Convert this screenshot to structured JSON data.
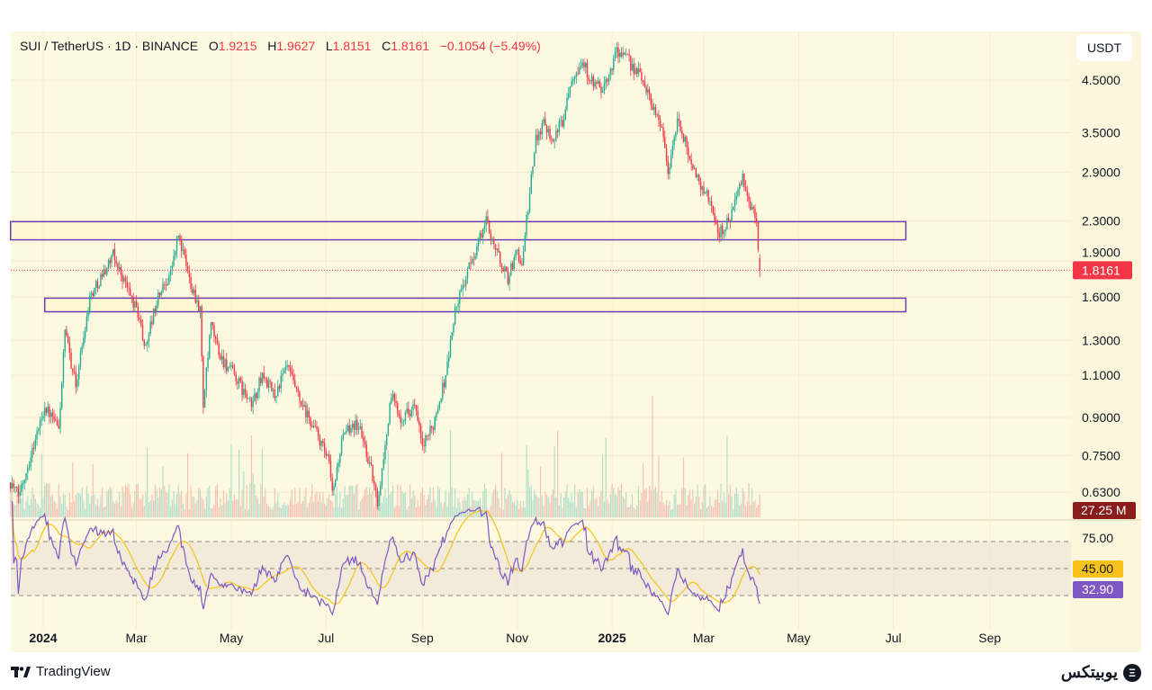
{
  "legend": {
    "symbol": "SUI / TetherUS · 1D · BINANCE",
    "open_label": "O",
    "open": "1.9215",
    "high_label": "H",
    "high": "1.9627",
    "low_label": "L",
    "low": "1.8151",
    "close_label": "C",
    "close": "1.8161",
    "change": "−0.1054 (−5.49%)"
  },
  "currency_button": "USDT",
  "footer": {
    "tradingview": "TradingView",
    "brand": "یوبیتکس"
  },
  "colors": {
    "up": "#22ab94",
    "down": "#f23645",
    "background": "#fdf9e1",
    "zone": "#6a3fb5",
    "rsi": "#7e57c2",
    "rsi_ma": "#f7c21a",
    "volume_badge": "#8b1c1c"
  },
  "chart_data": {
    "type": "candlestick",
    "title": "SUI / TetherUS · 1D · BINANCE",
    "x_unit": "days since 2024-01-01",
    "x_range": [
      -21,
      640
    ],
    "price_scale": "log",
    "ylim": [
      0.6,
      5.3
    ],
    "price_ticks": [
      "4.5000",
      "3.5000",
      "2.9000",
      "2.3000",
      "1.9000",
      "1.6000",
      "1.3000",
      "1.1000",
      "0.9000",
      "0.7500",
      "0.6300"
    ],
    "time_ticks": [
      {
        "label": "2024",
        "day": 0,
        "bold": true
      },
      {
        "label": "Mar",
        "day": 60
      },
      {
        "label": "May",
        "day": 121
      },
      {
        "label": "Jul",
        "day": 182
      },
      {
        "label": "Sep",
        "day": 244
      },
      {
        "label": "Nov",
        "day": 305
      },
      {
        "label": "2025",
        "day": 366,
        "bold": true
      },
      {
        "label": "Mar",
        "day": 425
      },
      {
        "label": "May",
        "day": 486
      },
      {
        "label": "Jul",
        "day": 547
      },
      {
        "label": "Sep",
        "day": 609
      }
    ],
    "price_path": [
      [
        -21,
        0.66
      ],
      [
        -16,
        0.62
      ],
      [
        -8,
        0.75
      ],
      [
        1,
        0.95
      ],
      [
        10,
        0.85
      ],
      [
        14,
        1.35
      ],
      [
        21,
        1.05
      ],
      [
        30,
        1.6
      ],
      [
        45,
        1.95
      ],
      [
        53,
        1.7
      ],
      [
        62,
        1.45
      ],
      [
        65,
        1.25
      ],
      [
        74,
        1.6
      ],
      [
        82,
        1.8
      ],
      [
        87,
        2.15
      ],
      [
        94,
        1.75
      ],
      [
        101,
        1.5
      ],
      [
        103,
        0.95
      ],
      [
        108,
        1.4
      ],
      [
        114,
        1.2
      ],
      [
        123,
        1.1
      ],
      [
        134,
        0.95
      ],
      [
        141,
        1.1
      ],
      [
        149,
        1.0
      ],
      [
        157,
        1.15
      ],
      [
        166,
        0.95
      ],
      [
        175,
        0.85
      ],
      [
        184,
        0.72
      ],
      [
        186,
        0.62
      ],
      [
        192,
        0.8
      ],
      [
        199,
        0.88
      ],
      [
        204,
        0.85
      ],
      [
        211,
        0.7
      ],
      [
        215,
        0.6
      ],
      [
        218,
        0.7
      ],
      [
        224,
        1.0
      ],
      [
        230,
        0.9
      ],
      [
        239,
        0.95
      ],
      [
        244,
        0.78
      ],
      [
        250,
        0.85
      ],
      [
        259,
        1.1
      ],
      [
        265,
        1.5
      ],
      [
        273,
        1.8
      ],
      [
        285,
        2.3
      ],
      [
        294,
        1.9
      ],
      [
        299,
        1.75
      ],
      [
        305,
        2.0
      ],
      [
        308,
        1.85
      ],
      [
        311,
        2.3
      ],
      [
        317,
        3.4
      ],
      [
        322,
        3.7
      ],
      [
        328,
        3.4
      ],
      [
        334,
        3.7
      ],
      [
        340,
        4.6
      ],
      [
        347,
        4.9
      ],
      [
        354,
        4.4
      ],
      [
        361,
        4.3
      ],
      [
        369,
        5.2
      ],
      [
        377,
        4.9
      ],
      [
        386,
        4.5
      ],
      [
        392,
        4.0
      ],
      [
        398,
        3.6
      ],
      [
        402,
        2.9
      ],
      [
        408,
        3.7
      ],
      [
        415,
        3.2
      ],
      [
        421,
        2.8
      ],
      [
        430,
        2.5
      ],
      [
        434,
        2.15
      ],
      [
        441,
        2.3
      ],
      [
        450,
        2.8
      ],
      [
        456,
        2.4
      ],
      [
        459,
        2.3
      ],
      [
        461,
        1.82
      ]
    ],
    "zones": [
      {
        "from_day": -21,
        "to_day": 555,
        "price_low": 2.1,
        "price_high": 2.29
      },
      {
        "from_day": 1,
        "to_day": 555,
        "price_low": 1.49,
        "price_high": 1.59
      }
    ],
    "last_price": "1.8161",
    "last_price_value": 1.8161,
    "volume": {
      "last_label": "27.25 M"
    },
    "rsi": {
      "period": 14,
      "levels": [
        70,
        50,
        30
      ],
      "axis_label": "75.00",
      "ma_value_label": "45.00",
      "rsi_value_label": "32.90"
    }
  }
}
